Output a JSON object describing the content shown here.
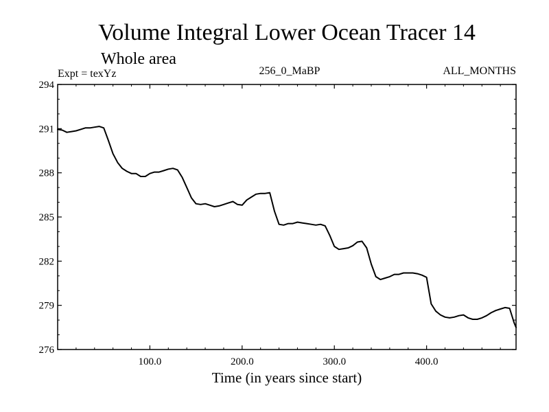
{
  "chart_data": {
    "type": "line",
    "title": "Volume Integral Lower Ocean Tracer 14",
    "subtitle": "Whole area",
    "annotations": {
      "left": "Expt = texYz",
      "center": "256_0_MaBP",
      "right": "ALL_MONTHS"
    },
    "xlabel": "Time (in years since start)",
    "ylabel": "",
    "xlim": [
      0,
      497
    ],
    "ylim": [
      276,
      294
    ],
    "xticks": [
      100,
      200,
      300,
      400
    ],
    "xtick_labels": [
      "100.0",
      "200.0",
      "300.0",
      "400.0"
    ],
    "yticks": [
      276,
      279,
      282,
      285,
      288,
      291,
      294
    ],
    "ytick_labels": [
      "276",
      "279",
      "282",
      "285",
      "288",
      "291",
      "294"
    ],
    "grid": false,
    "series": [
      {
        "color": "#000000",
        "x": [
          0,
          5,
          10,
          15,
          20,
          25,
          30,
          35,
          40,
          45,
          50,
          55,
          60,
          65,
          70,
          75,
          80,
          85,
          90,
          95,
          100,
          105,
          110,
          115,
          120,
          125,
          130,
          135,
          140,
          145,
          150,
          155,
          160,
          165,
          170,
          175,
          180,
          185,
          190,
          195,
          200,
          205,
          210,
          215,
          220,
          225,
          230,
          235,
          240,
          245,
          250,
          255,
          260,
          265,
          270,
          275,
          280,
          285,
          290,
          295,
          300,
          305,
          310,
          315,
          320,
          325,
          330,
          335,
          340,
          345,
          350,
          355,
          360,
          365,
          370,
          375,
          380,
          385,
          390,
          395,
          400,
          405,
          410,
          415,
          420,
          425,
          430,
          435,
          440,
          445,
          450,
          455,
          460,
          465,
          470,
          475,
          480,
          485,
          490,
          495,
          497
        ],
        "y": [
          290.95,
          290.9,
          290.75,
          290.8,
          290.85,
          290.95,
          291.05,
          291.05,
          291.1,
          291.15,
          291.05,
          290.2,
          289.3,
          288.7,
          288.3,
          288.1,
          287.95,
          287.95,
          287.75,
          287.75,
          287.95,
          288.05,
          288.05,
          288.15,
          288.25,
          288.3,
          288.2,
          287.7,
          287.0,
          286.3,
          285.9,
          285.85,
          285.9,
          285.8,
          285.7,
          285.75,
          285.85,
          285.95,
          286.05,
          285.85,
          285.8,
          286.15,
          286.35,
          286.55,
          286.6,
          286.6,
          286.65,
          285.4,
          284.5,
          284.45,
          284.55,
          284.55,
          284.65,
          284.6,
          284.55,
          284.5,
          284.45,
          284.5,
          284.4,
          283.75,
          283.0,
          282.8,
          282.85,
          282.9,
          283.05,
          283.3,
          283.35,
          282.9,
          281.8,
          280.95,
          280.75,
          280.85,
          280.95,
          281.1,
          281.1,
          281.2,
          281.2,
          281.2,
          281.15,
          281.05,
          280.9,
          279.1,
          278.6,
          278.35,
          278.2,
          278.15,
          278.2,
          278.3,
          278.35,
          278.15,
          278.05,
          278.05,
          278.15,
          278.3,
          278.5,
          278.65,
          278.75,
          278.85,
          278.8,
          277.8,
          277.5
        ]
      }
    ]
  }
}
